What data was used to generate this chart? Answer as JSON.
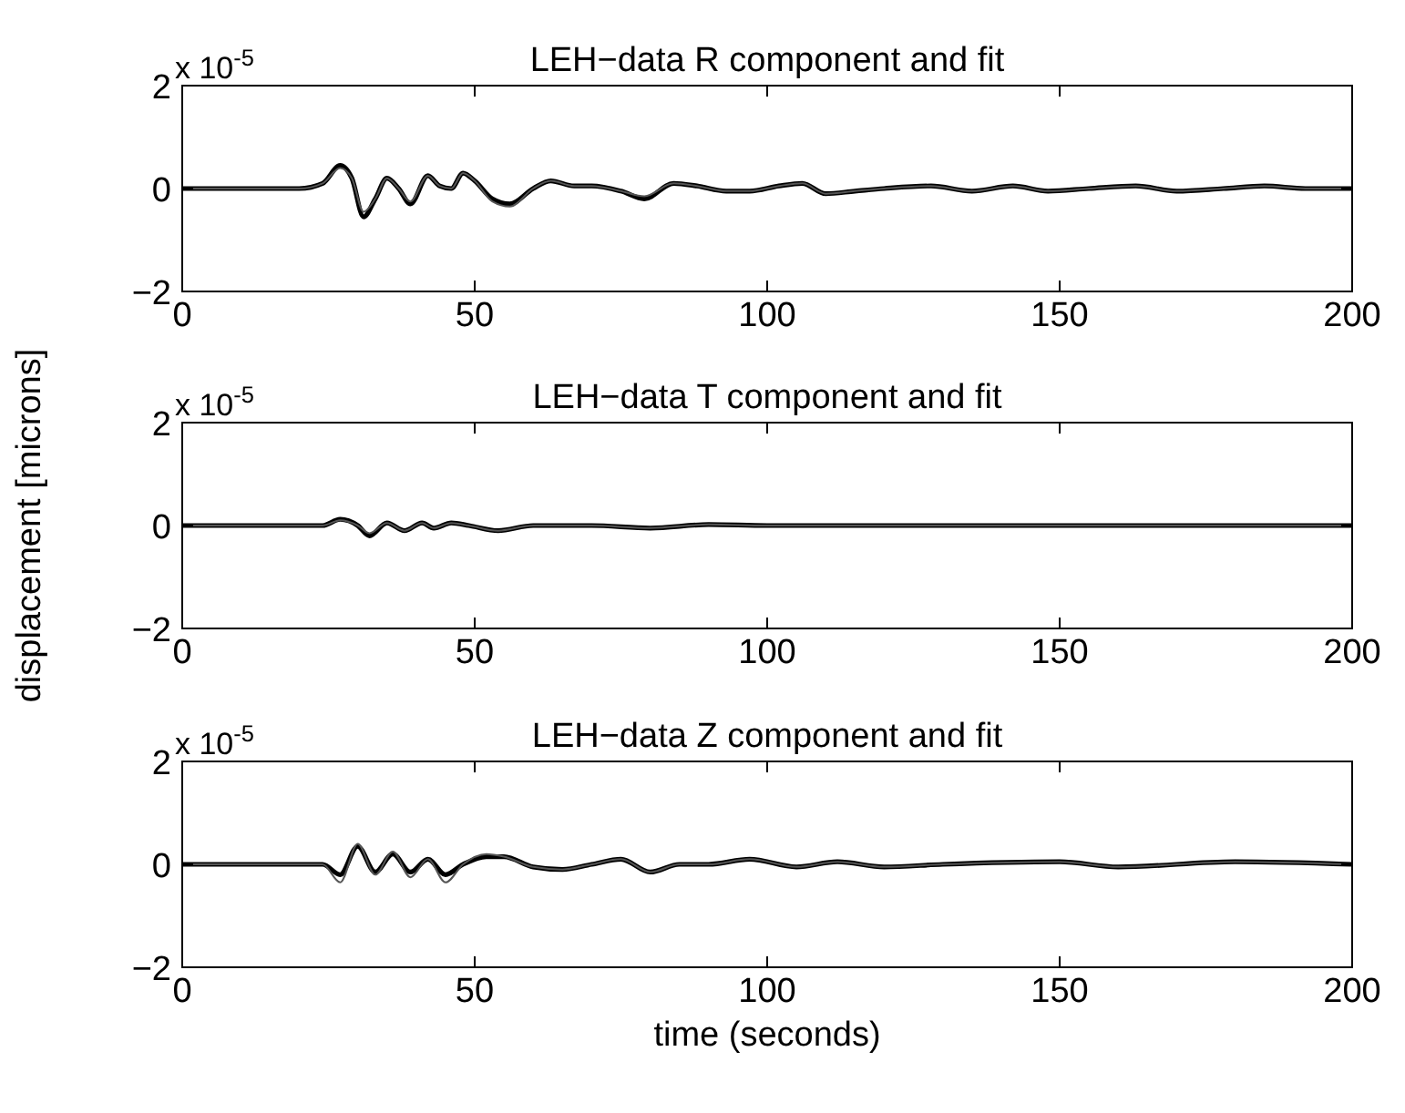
{
  "chart_data": [
    {
      "type": "line",
      "title": "LEH−data R component and fit",
      "annotations": [
        "x 10$^{-5}$"
      ],
      "xlim": [
        0,
        200
      ],
      "xticks": [
        0,
        50,
        100,
        150,
        200
      ],
      "ylim": [
        -2,
        2
      ],
      "yticks": [
        -2,
        0,
        2
      ],
      "grid": false,
      "series": [
        {
          "color": "#000000",
          "x": [
            0,
            20,
            24,
            27,
            29,
            31,
            33,
            35,
            37,
            39,
            42,
            44,
            46,
            48,
            50,
            53,
            56,
            60,
            63,
            67,
            70,
            75,
            79,
            84,
            88,
            93,
            97,
            102,
            106,
            110,
            115,
            120,
            128,
            135,
            142,
            148,
            155,
            163,
            170,
            178,
            185,
            192,
            200
          ],
          "values": [
            0,
            0,
            0.1,
            0.45,
            0.2,
            -0.55,
            -0.2,
            0.2,
            0,
            -0.3,
            0.25,
            0.05,
            0,
            0.3,
            0.15,
            -0.2,
            -0.3,
            0,
            0.15,
            0.05,
            0.05,
            -0.05,
            -0.2,
            0.1,
            0.05,
            -0.05,
            -0.05,
            0.05,
            0.1,
            -0.1,
            -0.05,
            0,
            0.05,
            -0.05,
            0.05,
            -0.05,
            0,
            0.05,
            -0.05,
            0,
            0.05,
            0,
            0
          ]
        },
        {
          "color": "#555555",
          "x": [
            0,
            20,
            24,
            27,
            29,
            31,
            33,
            35,
            37,
            39,
            42,
            44,
            46,
            48,
            50,
            53,
            56,
            60,
            63,
            67,
            70,
            75,
            79,
            84,
            88,
            93,
            97,
            102,
            106,
            110,
            115,
            120,
            128,
            135,
            142,
            148,
            155,
            163,
            170,
            178,
            185,
            192,
            200
          ],
          "values": [
            0,
            0,
            0.1,
            0.4,
            0.2,
            -0.45,
            -0.2,
            0.2,
            0,
            -0.25,
            0.25,
            0.05,
            0,
            0.3,
            0.15,
            -0.25,
            -0.35,
            0,
            0.15,
            0.05,
            0.05,
            -0.05,
            -0.15,
            0.1,
            0.05,
            -0.05,
            -0.05,
            0.05,
            0.1,
            -0.1,
            -0.05,
            0,
            0.05,
            -0.05,
            0.05,
            -0.05,
            0,
            0.05,
            -0.05,
            0,
            0.05,
            0,
            0
          ]
        }
      ]
    },
    {
      "type": "line",
      "title": "LEH−data T component and fit",
      "annotations": [
        "x 10$^{-5}$"
      ],
      "ylabel": "displacement [microns]",
      "xlim": [
        0,
        200
      ],
      "xticks": [
        0,
        50,
        100,
        150,
        200
      ],
      "ylim": [
        -2,
        2
      ],
      "yticks": [
        -2,
        0,
        2
      ],
      "grid": false,
      "series": [
        {
          "color": "#000000",
          "x": [
            0,
            24,
            27,
            30,
            32,
            35,
            38,
            41,
            43,
            46,
            49,
            54,
            60,
            70,
            80,
            90,
            100,
            130,
            160,
            200
          ],
          "values": [
            0,
            0,
            0.12,
            0,
            -0.2,
            0.05,
            -0.1,
            0.05,
            -0.05,
            0.05,
            0,
            -0.1,
            0,
            0,
            -0.05,
            0.02,
            0,
            0,
            0,
            0
          ]
        },
        {
          "color": "#555555",
          "x": [
            0,
            24,
            27,
            30,
            32,
            35,
            38,
            41,
            43,
            46,
            49,
            54,
            60,
            70,
            80,
            90,
            100,
            130,
            160,
            200
          ],
          "values": [
            0,
            0,
            0.1,
            0,
            -0.15,
            0.05,
            -0.1,
            0.05,
            -0.05,
            0.05,
            0,
            -0.1,
            0,
            0,
            -0.05,
            0.02,
            0,
            0,
            0,
            0
          ]
        }
      ]
    },
    {
      "type": "line",
      "title": "LEH−data Z component and fit",
      "annotations": [
        "x 10$^{-5}$"
      ],
      "xlabel": "time (seconds)",
      "xlim": [
        0,
        200
      ],
      "xticks": [
        0,
        50,
        100,
        150,
        200
      ],
      "ylim": [
        -2,
        2
      ],
      "yticks": [
        -2,
        0,
        2
      ],
      "grid": false,
      "series": [
        {
          "color": "#000000",
          "x": [
            0,
            24,
            27,
            30,
            33,
            36,
            39,
            42,
            45,
            48,
            52,
            55,
            60,
            65,
            70,
            75,
            80,
            85,
            90,
            97,
            105,
            112,
            120,
            130,
            150,
            160,
            180,
            200
          ],
          "values": [
            0,
            0,
            -0.2,
            0.35,
            -0.15,
            0.2,
            -0.15,
            0.1,
            -0.2,
            0,
            0.15,
            0.15,
            -0.05,
            -0.1,
            0,
            0.1,
            -0.15,
            0,
            0,
            0.1,
            -0.05,
            0.05,
            -0.05,
            0,
            0.05,
            -0.05,
            0.05,
            0
          ]
        },
        {
          "color": "#555555",
          "x": [
            0,
            24,
            27,
            30,
            33,
            36,
            39,
            42,
            45,
            48,
            52,
            55,
            60,
            65,
            70,
            75,
            80,
            85,
            90,
            97,
            105,
            112,
            120,
            130,
            150,
            160,
            180,
            200
          ],
          "values": [
            0,
            0,
            -0.35,
            0.4,
            -0.2,
            0.25,
            -0.25,
            0.1,
            -0.35,
            0,
            0.2,
            0.15,
            -0.05,
            -0.1,
            0,
            0.1,
            -0.15,
            0,
            0,
            0.1,
            -0.05,
            0.05,
            -0.05,
            0,
            0.05,
            -0.05,
            0.05,
            0
          ]
        }
      ]
    }
  ]
}
